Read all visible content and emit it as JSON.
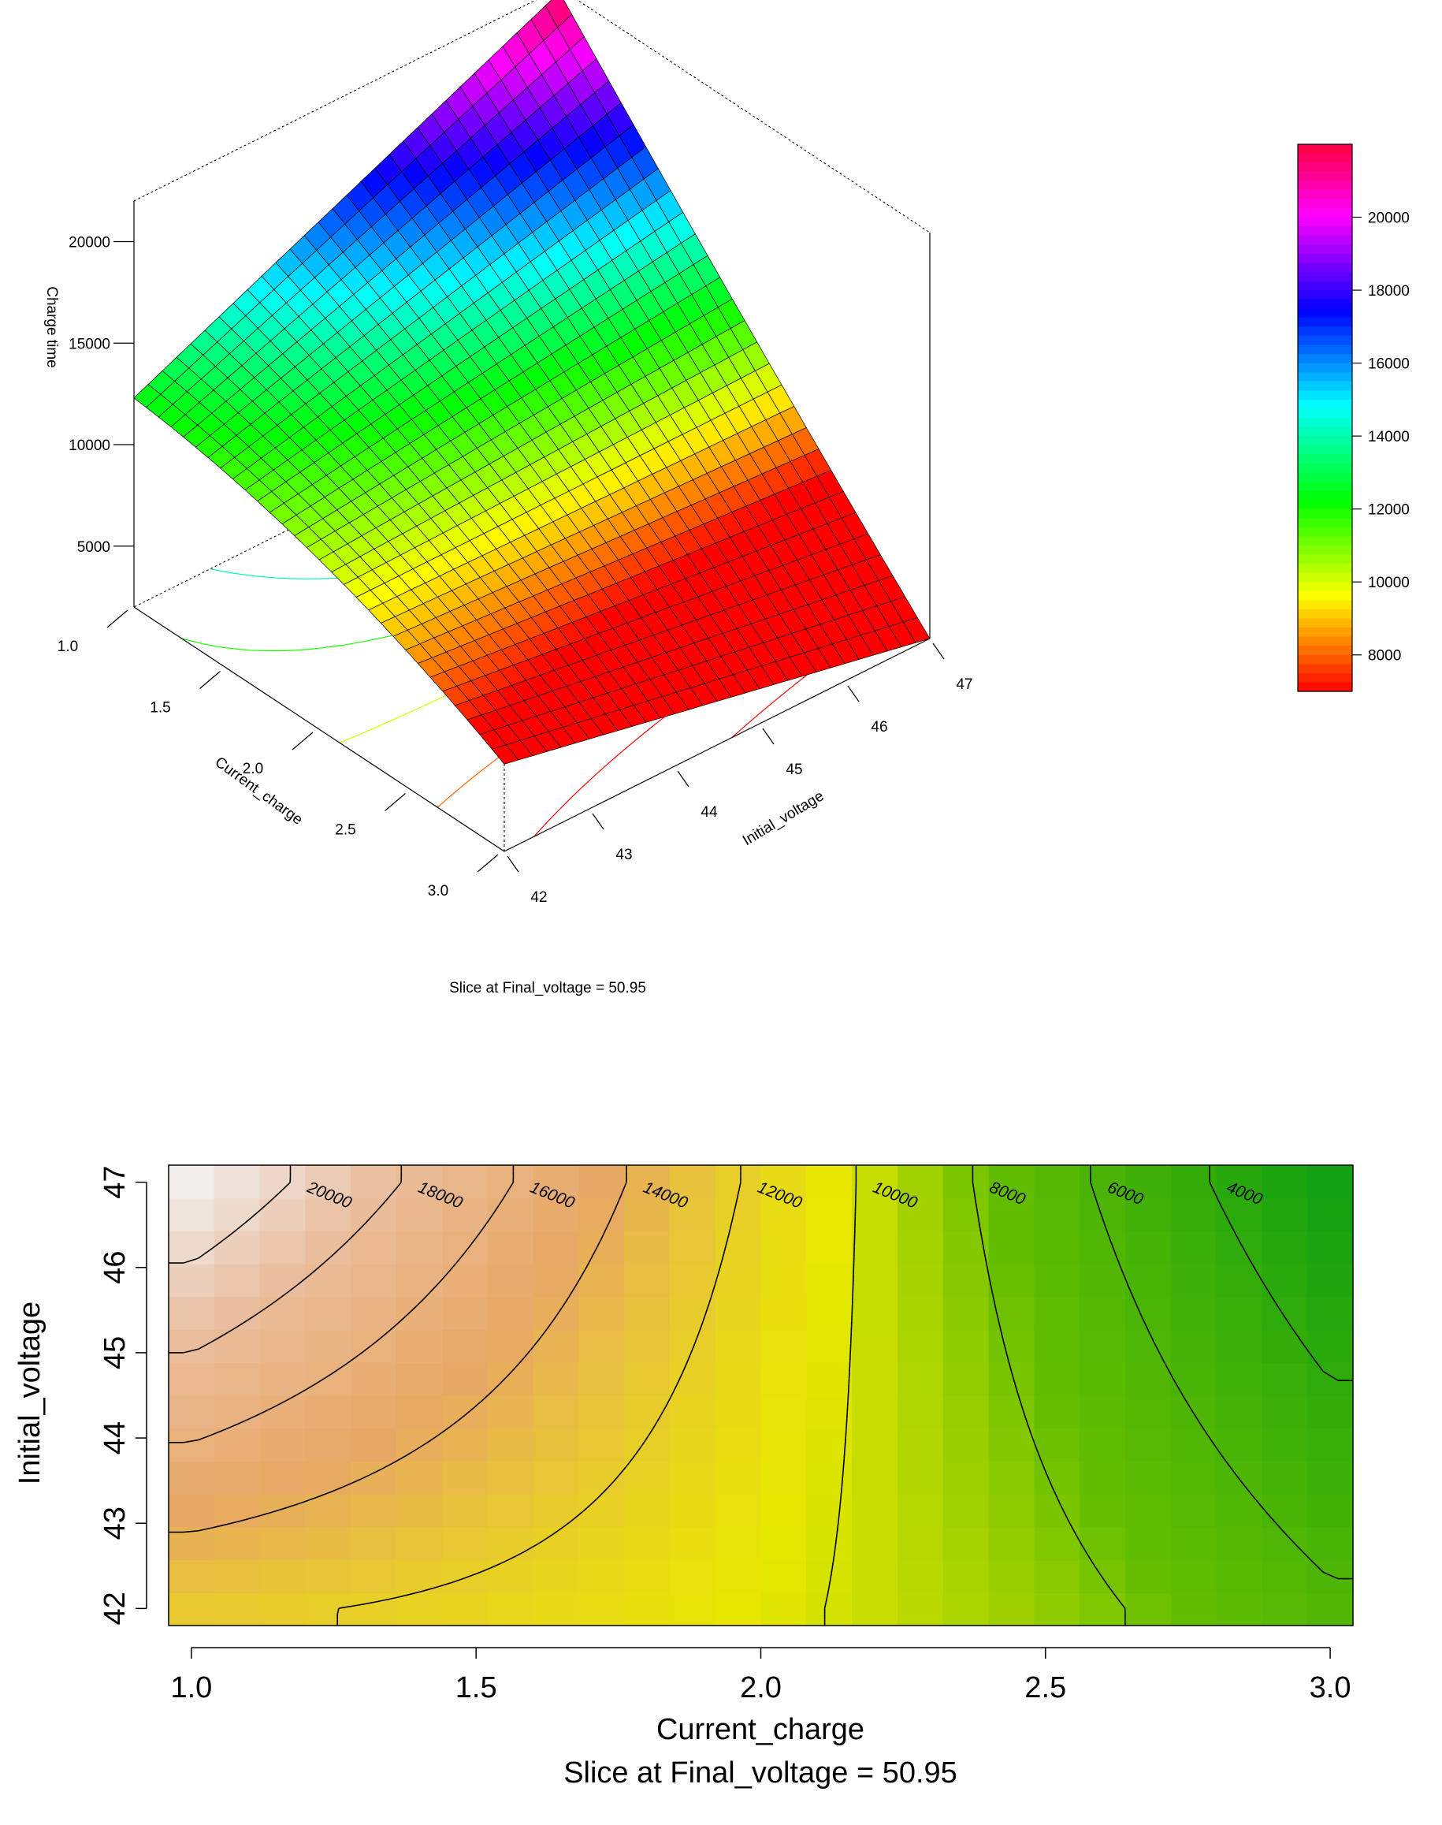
{
  "chart_data": [
    {
      "type": "surface",
      "subtitle": "Slice at Final_voltage = 50.95",
      "xlabel": "Current_charge",
      "ylabel": "Initial_voltage",
      "zlabel": "Charge time",
      "xlim": [
        1.0,
        3.0
      ],
      "ylim": [
        42,
        47
      ],
      "zlim": [
        2000,
        22000
      ],
      "x_ticks": [
        "1.0",
        "1.5",
        "2.0",
        "2.5",
        "3.0"
      ],
      "y_ticks": [
        "42",
        "43",
        "44",
        "45",
        "46",
        "47"
      ],
      "z_ticks": [
        "5000",
        "10000",
        "15000",
        "20000"
      ],
      "colorbar_ticks": [
        "8000",
        "10000",
        "12000",
        "14000",
        "16000",
        "18000",
        "20000"
      ],
      "colorbar_range": [
        7000,
        22000
      ],
      "colormap": "rainbow (red-yellow-green-cyan-blue-magenta-red)",
      "grid": [
        {
          "current_charge": 1.0,
          "initial_voltage": 42,
          "charge_time": 12300
        },
        {
          "current_charge": 1.0,
          "initial_voltage": 47,
          "charge_time": 21800
        },
        {
          "current_charge": 3.0,
          "initial_voltage": 42,
          "charge_time": 6300
        },
        {
          "current_charge": 3.0,
          "initial_voltage": 47,
          "charge_time": 2000
        }
      ]
    },
    {
      "type": "contour",
      "subtitle": "Slice at Final_voltage = 50.95",
      "xlabel": "Current_charge",
      "ylabel": "Initial_voltage",
      "xlim": [
        1.0,
        3.0
      ],
      "ylim": [
        42,
        47
      ],
      "x_ticks": [
        "1.0",
        "1.5",
        "2.0",
        "2.5",
        "3.0"
      ],
      "y_ticks": [
        "42",
        "43",
        "44",
        "45",
        "46",
        "47"
      ],
      "contour_levels": [
        "20000",
        "18000",
        "16000",
        "14000",
        "12000",
        "10000",
        "8000",
        "6000",
        "4000"
      ],
      "color_low": "#11a011",
      "color_mid": "#e8e800",
      "color_high": "#f2f2f2"
    }
  ]
}
